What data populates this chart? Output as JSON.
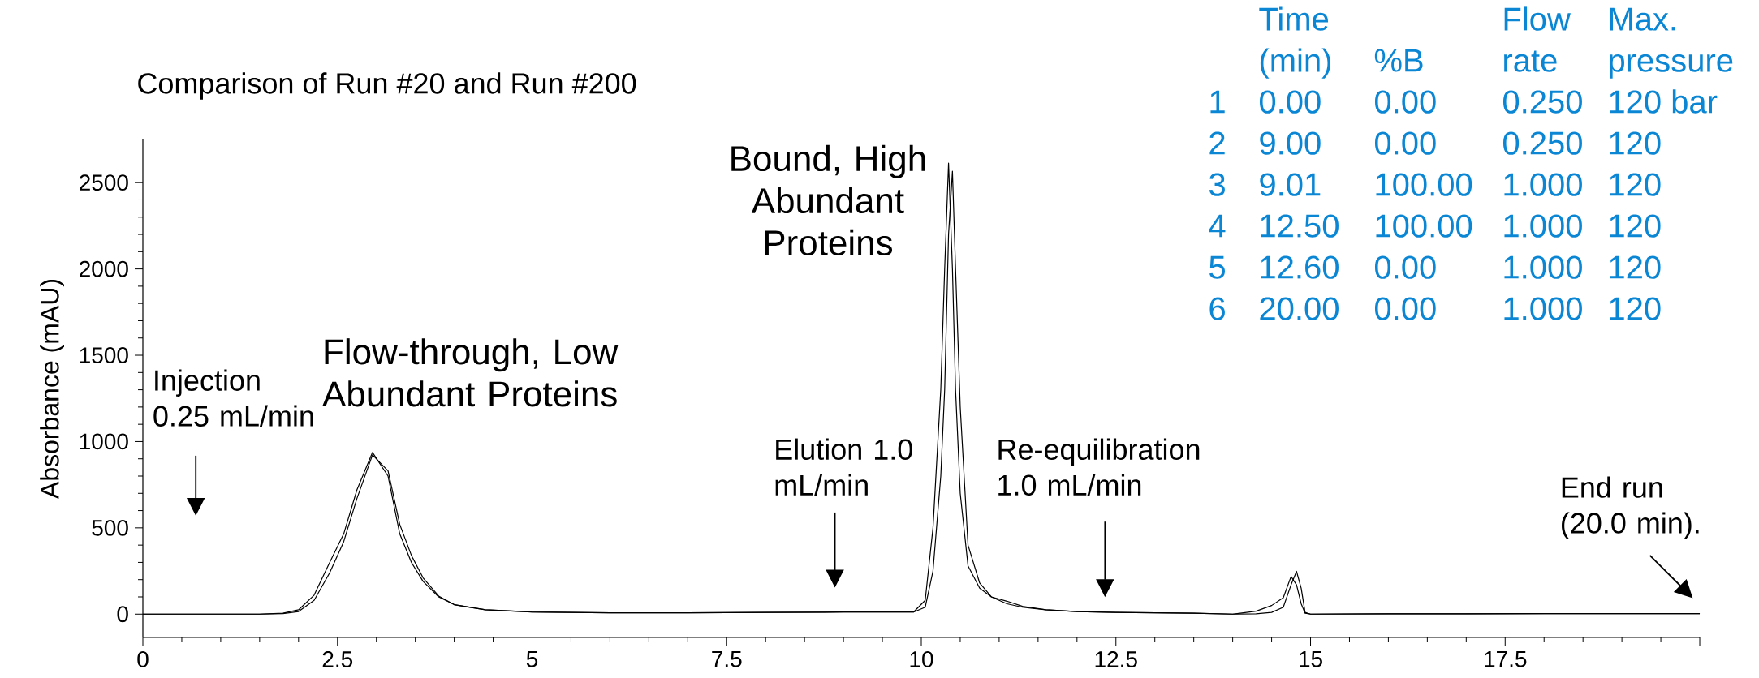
{
  "chart_data": {
    "type": "line",
    "title": "Comparison of Run #20 and Run #200",
    "ylabel": "Absorbance (mAU)",
    "x": [
      0,
      1.5,
      1.8,
      2.0,
      2.2,
      2.4,
      2.58,
      2.75,
      2.95,
      3.15,
      3.3,
      3.45,
      3.6,
      3.8,
      4.0,
      4.4,
      5.0,
      6,
      7,
      8,
      9,
      9.9,
      10.05,
      10.15,
      10.25,
      10.3,
      10.35,
      10.4,
      10.44,
      10.5,
      10.6,
      10.75,
      10.9,
      11.1,
      11.3,
      11.6,
      12.0,
      12.5,
      13.5,
      14.0,
      14.3,
      14.5,
      14.65,
      14.75,
      14.82,
      14.88,
      14.93,
      15.0,
      16,
      17,
      18,
      19,
      20
    ],
    "series": [
      {
        "color": "#000000",
        "values": [
          0,
          0,
          5,
          25,
          110,
          300,
          465,
          720,
          937,
          800,
          465,
          300,
          190,
          100,
          55,
          25,
          12,
          8,
          8,
          10,
          12,
          12,
          80,
          500,
          1300,
          2000,
          2613,
          2000,
          1300,
          700,
          280,
          150,
          100,
          60,
          40,
          25,
          15,
          10,
          5,
          0,
          2,
          10,
          40,
          170,
          248,
          150,
          10,
          0,
          2,
          2,
          3,
          3,
          3
        ]
      },
      {
        "color": "#000000",
        "values": [
          0,
          0,
          3,
          15,
          80,
          240,
          420,
          670,
          923,
          830,
          520,
          340,
          210,
          105,
          55,
          25,
          12,
          8,
          8,
          10,
          12,
          12,
          40,
          250,
          800,
          1300,
          2200,
          2566,
          2000,
          1200,
          400,
          180,
          100,
          75,
          45,
          25,
          15,
          10,
          5,
          0,
          17,
          50,
          95,
          218,
          170,
          60,
          5,
          0,
          2,
          2,
          3,
          3,
          3
        ]
      }
    ],
    "xlim": [
      0,
      20
    ],
    "ylim": [
      -135,
      2750
    ],
    "xticks": [
      0,
      2.5,
      5,
      7.5,
      10,
      12.5,
      15,
      17.5,
      {
        "value": 20,
        "label": null
      }
    ],
    "yticks": [
      0,
      500,
      1000,
      1500,
      2000,
      2500
    ],
    "annotations": [
      "Injection 0.25 mL/min",
      "Flow-through, Low Abundant Proteins",
      "Bound, High Abundant Proteins",
      "Elution 1.0 mL/min",
      "Re-equilibration 1.0 mL/min",
      "End run (20.0 min).",
      "Time (min)",
      "%B",
      "Flow rate",
      "Max. pressure",
      "1",
      "0.00",
      "0.00",
      "0.250",
      "120 bar",
      "2",
      "9.00",
      "0.00",
      "0.250",
      "120",
      "3",
      "9.01",
      "100.00",
      "1.000",
      "120",
      "4",
      "12.50",
      "100.00",
      "1.000",
      "120",
      "5",
      "12.60",
      "0.00",
      "1.000",
      "120",
      "6",
      "20.00",
      "0.00",
      "1.000",
      "120"
    ]
  }
}
